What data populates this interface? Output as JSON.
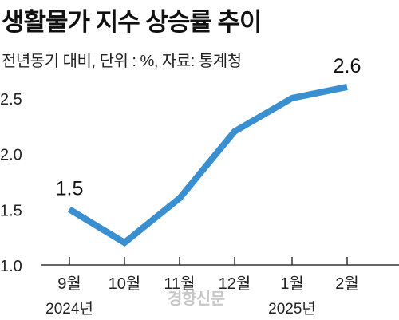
{
  "header": {
    "title": "생활물가 지수 상승률 추이",
    "subtitle": "전년동기 대비, 단위 : %, 자료: 통계청"
  },
  "watermark": "경향신문",
  "chart_data": {
    "type": "line",
    "title": "생활물가 지수 상승률 추이",
    "subtitle": "전년동기 대비, 단위 : %, 자료: 통계청",
    "categories": [
      "9월",
      "10월",
      "11월",
      "12월",
      "1월",
      "2월"
    ],
    "year_labels": [
      {
        "category": "9월",
        "label": "2024년"
      },
      {
        "category": "1월",
        "label": "2025년"
      }
    ],
    "series": [
      {
        "values": [
          1.5,
          1.2,
          1.6,
          2.2,
          2.5,
          2.6
        ]
      }
    ],
    "data_labels": [
      {
        "category": "9월",
        "label": "1.5"
      },
      {
        "category": "2월",
        "label": "2.6"
      }
    ],
    "y_ticks": [
      "1.0",
      "1.5",
      "2.0",
      "2.5"
    ],
    "ylim": [
      1.0,
      2.7
    ],
    "grid": false,
    "line_color": "#3a8fd0"
  }
}
